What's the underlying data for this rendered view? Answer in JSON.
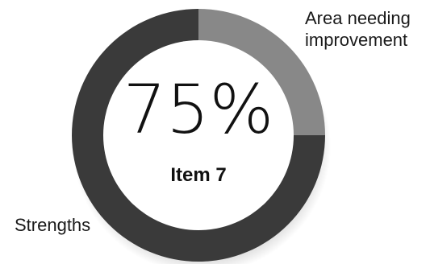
{
  "chart_data": {
    "type": "pie",
    "variant": "donut",
    "title": "",
    "center_value": "75%",
    "center_label": "Item 7",
    "slices": [
      {
        "name": "Strengths",
        "value": 75,
        "color": "#3a3a3a"
      },
      {
        "name": "Area needing improvement",
        "value": 25,
        "color": "#888888"
      }
    ],
    "labels": {
      "improvement_line1": "Area needing",
      "improvement_line2": "improvement",
      "strengths": "Strengths"
    }
  }
}
